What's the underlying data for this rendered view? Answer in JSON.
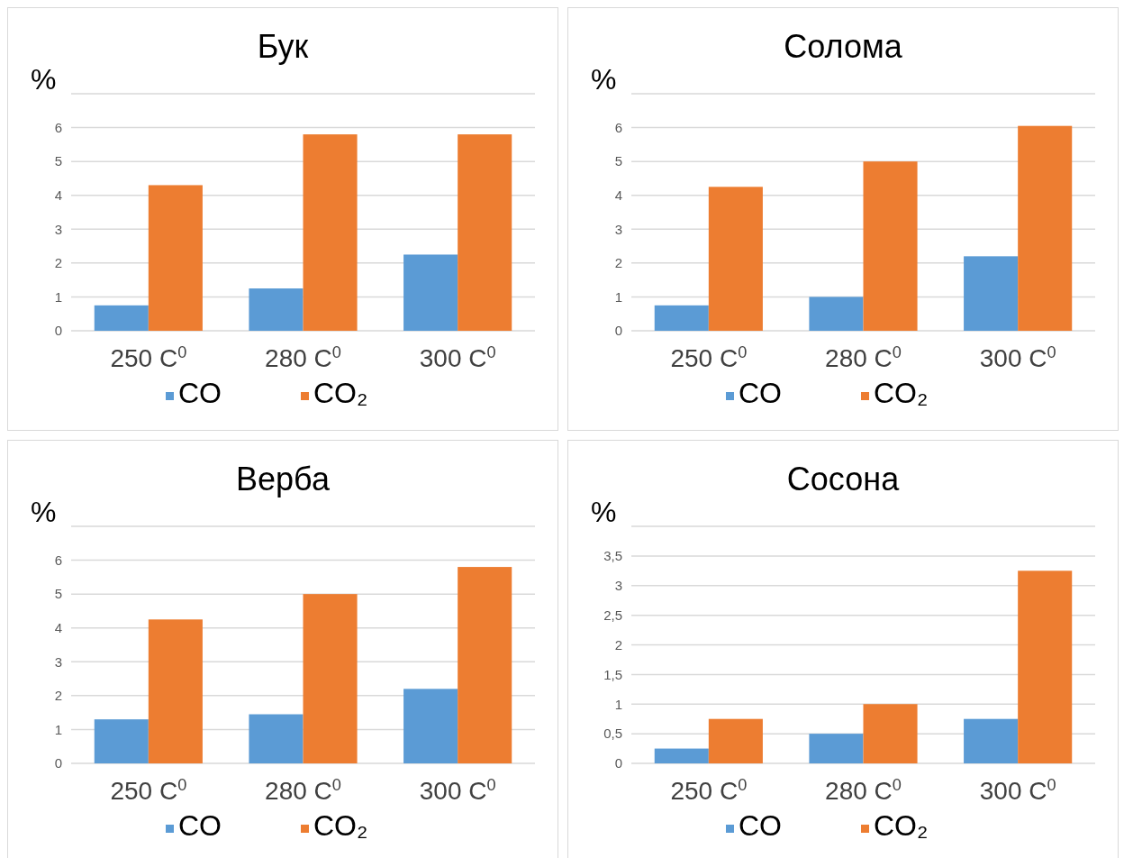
{
  "chart_data": [
    {
      "type": "bar",
      "title": "Бук",
      "ylabel": "%",
      "categories": [
        "250 C$^{0}$",
        "280 C$^{0}$",
        "300 C$^{0}$"
      ],
      "series": [
        {
          "name": "CO",
          "color": "#5b9bd5",
          "values": [
            0.75,
            1.25,
            2.25
          ]
        },
        {
          "name": "CO₂",
          "color": "#ed7d31",
          "values": [
            4.3,
            5.8,
            5.8
          ]
        }
      ],
      "ylim": [
        0,
        7
      ],
      "yticks": [
        0,
        1,
        2,
        3,
        4,
        5,
        6,
        {
          "value": 7,
          "label": null
        }
      ],
      "grid": "y",
      "legend": "bottom"
    },
    {
      "type": "bar",
      "title": "Солома",
      "ylabel": "%",
      "categories": [
        "250 C$^{0}$",
        "280 C$^{0}$",
        "300 C$^{0}$"
      ],
      "series": [
        {
          "name": "CO",
          "color": "#5b9bd5",
          "values": [
            0.75,
            1,
            2.2
          ]
        },
        {
          "name": "CO₂",
          "color": "#ed7d31",
          "values": [
            4.25,
            5,
            6.05
          ]
        }
      ],
      "ylim": [
        0,
        7
      ],
      "yticks": [
        0,
        1,
        2,
        3,
        4,
        5,
        6,
        {
          "value": 7,
          "label": null
        }
      ],
      "grid": "y",
      "legend": "bottom"
    },
    {
      "type": "bar",
      "title": "Верба",
      "ylabel": "%",
      "categories": [
        "250 C$^{0}$",
        "280 C$^{0}$",
        "300 C$^{0}$"
      ],
      "series": [
        {
          "name": "CO",
          "color": "#5b9bd5",
          "values": [
            1.3,
            1.45,
            2.2
          ]
        },
        {
          "name": "CO₂",
          "color": "#ed7d31",
          "values": [
            4.25,
            5,
            5.8
          ]
        }
      ],
      "ylim": [
        0,
        7
      ],
      "yticks": [
        0,
        1,
        2,
        3,
        4,
        5,
        6,
        {
          "value": 7,
          "label": null
        }
      ],
      "grid": "y",
      "legend": "bottom"
    },
    {
      "type": "bar",
      "title": "Сосона",
      "ylabel": "%",
      "categories": [
        "250 C$^{0}$",
        "280 C$^{0}$",
        "300 C$^{0}$"
      ],
      "series": [
        {
          "name": "CO",
          "color": "#5b9bd5",
          "values": [
            0.25,
            0.5,
            0.75
          ]
        },
        {
          "name": "CO₂",
          "color": "#ed7d31",
          "values": [
            0.75,
            1,
            3.25
          ]
        }
      ],
      "ylim": [
        0,
        4
      ],
      "yticks": [
        0,
        {
          "value": 0.5,
          "label": "0,5"
        },
        1,
        {
          "value": 1.5,
          "label": "1,5"
        },
        2,
        {
          "value": 2.5,
          "label": "2,5"
        },
        3,
        {
          "value": 3.5,
          "label": "3,5"
        },
        {
          "value": 4,
          "label": null
        }
      ],
      "grid": "y",
      "legend": "bottom"
    }
  ]
}
